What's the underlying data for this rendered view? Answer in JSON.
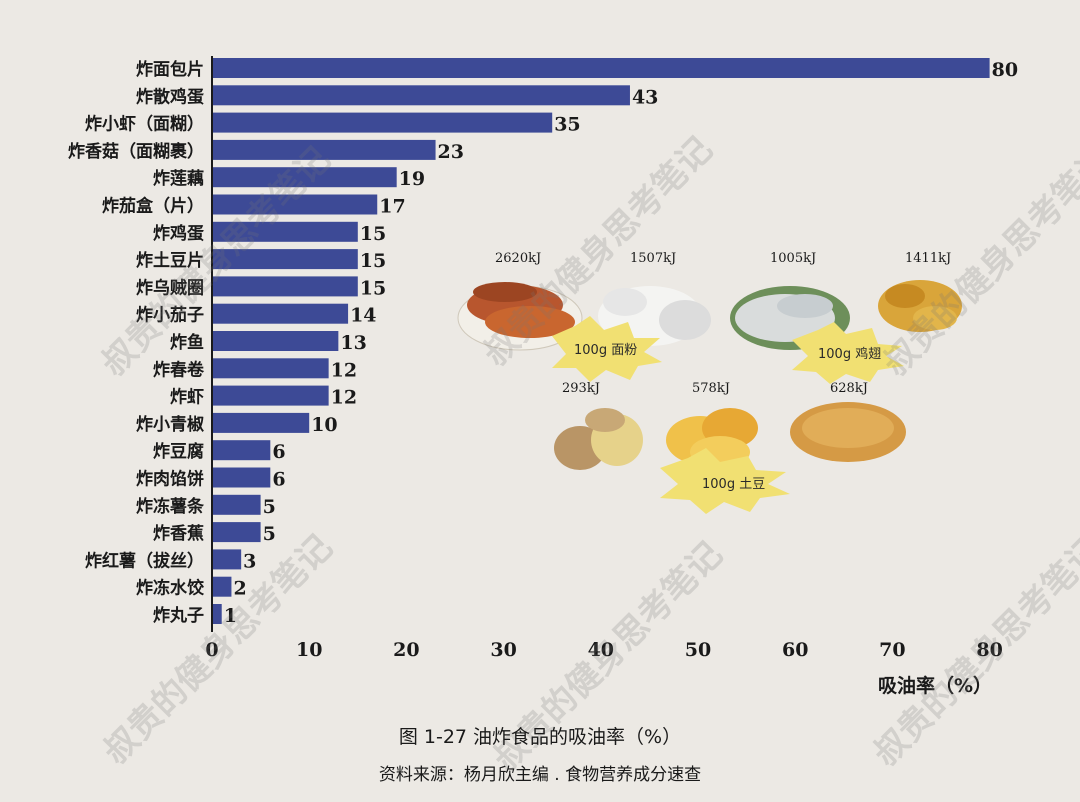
{
  "chart_data": {
    "type": "bar",
    "orientation": "horizontal",
    "categories": [
      "炸面包片",
      "炸散鸡蛋",
      "炸小虾（面糊）",
      "炸香菇（面糊裹）",
      "炸莲藕",
      "炸茄盒（片）",
      "炸鸡蛋",
      "炸土豆片",
      "炸乌贼圈",
      "炸小茄子",
      "炸鱼",
      "炸春卷",
      "炸虾",
      "炸小青椒",
      "炸豆腐",
      "炸肉馅饼",
      "炸冻薯条",
      "炸香蕉",
      "炸红薯（拔丝）",
      "炸冻水饺",
      "炸丸子"
    ],
    "values": [
      80,
      43,
      35,
      23,
      19,
      17,
      15,
      15,
      15,
      14,
      13,
      12,
      12,
      10,
      6,
      6,
      5,
      5,
      3,
      2,
      1
    ],
    "xticks": [
      "0",
      "10",
      "20",
      "30",
      "40",
      "50",
      "60",
      "70",
      "80"
    ],
    "xlim": [
      0,
      80
    ],
    "xlabel": "吸油率（%）",
    "bar_color": "#3d4a96",
    "grid": false
  },
  "inset": {
    "energy_labels": [
      "2620kJ",
      "1507kJ",
      "1005kJ",
      "1411kJ",
      "293kJ",
      "578kJ",
      "628kJ"
    ],
    "badges": [
      "100g 面粉",
      "100g 鸡翅",
      "100g 土豆"
    ]
  },
  "caption": {
    "figure": "图 1-27 油炸食品的吸油率（%）",
    "source": "资料来源：杨月欣主编 . 食物营养成分速查"
  },
  "watermark": "叔贵的健身思考笔记"
}
